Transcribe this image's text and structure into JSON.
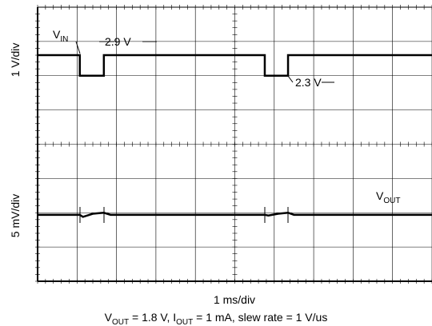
{
  "chart_data": {
    "type": "line",
    "xlim": [
      0,
      10
    ],
    "ylim": [
      0,
      8
    ],
    "grid": true,
    "x_label": "1 ms/div",
    "y_labels": [
      "1 V/div",
      "5 mV/div"
    ],
    "caption": [
      {
        "text": "V"
      },
      {
        "text": "OUT",
        "sub": true
      },
      {
        "text": " = 1.8 V, I"
      },
      {
        "text": "OUT",
        "sub": true
      },
      {
        "text": " = 1 mA, slew rate = 1 V/us"
      }
    ],
    "annotations": [
      {
        "parts": [
          {
            "text": "V"
          },
          {
            "text": "IN",
            "sub": true
          }
        ]
      },
      {
        "parts": [
          {
            "text": "2.9 V"
          }
        ]
      },
      {
        "parts": [
          {
            "text": "2.3 V"
          }
        ]
      },
      {
        "parts": [
          {
            "text": "V"
          },
          {
            "text": "OUT",
            "sub": true
          }
        ]
      }
    ],
    "series": [
      {
        "color": "#000000",
        "x": [
          0,
          1.07,
          1.07,
          1.68,
          1.68,
          5.76,
          5.76,
          6.35,
          6.35,
          10
        ],
        "values": [
          6.6,
          6.6,
          6.0,
          6.0,
          6.6,
          6.6,
          6.0,
          6.0,
          6.6,
          6.6
        ]
      },
      {
        "color": "#000000",
        "x": [
          0,
          1.07,
          1.15,
          1.4,
          1.68,
          1.85,
          5.76,
          5.85,
          6.1,
          6.35,
          6.5,
          10
        ],
        "values": [
          1.94,
          1.94,
          1.88,
          1.97,
          2.0,
          1.94,
          1.94,
          1.92,
          1.97,
          2.0,
          1.94,
          1.94
        ]
      }
    ]
  }
}
